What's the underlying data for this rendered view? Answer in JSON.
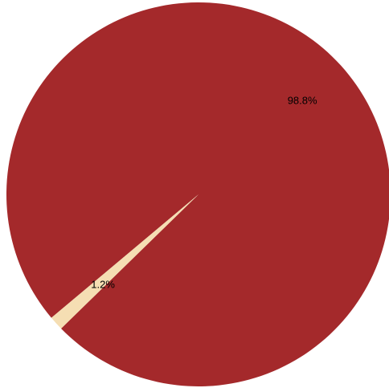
{
  "chart_data": {
    "type": "pie",
    "title": "",
    "slices": [
      {
        "label": "98.8%",
        "value": 98.8,
        "color": "#a4292b"
      },
      {
        "label": "1.2%",
        "value": 1.2,
        "color": "#f5deb3"
      }
    ],
    "start_angle_deg": 220,
    "direction": "clockwise"
  }
}
